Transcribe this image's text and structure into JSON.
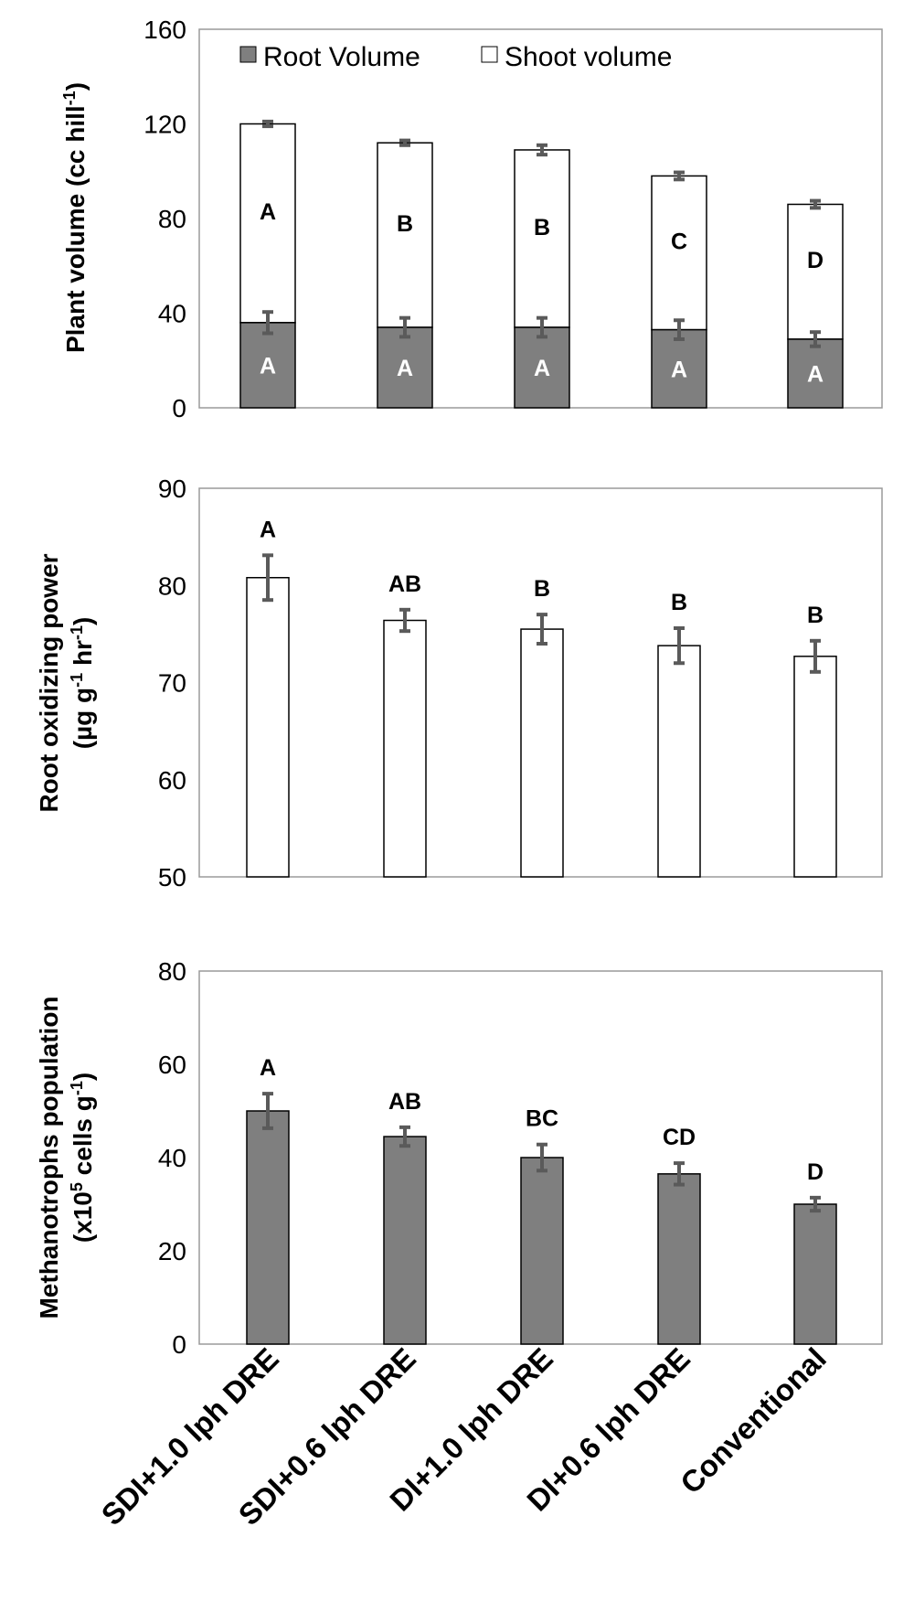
{
  "chart_data": [
    {
      "type": "bar",
      "stacked": true,
      "ylabel": "Plant volume (cc hill",
      "ylabel_sup": "-1",
      "ylabel_end": ")",
      "ylim": [
        0,
        160
      ],
      "yticks": [
        "0",
        "40",
        "80",
        "120",
        "160"
      ],
      "legend": {
        "placement": "top-left",
        "entries": [
          "Root Volume",
          "Shoot volume"
        ]
      },
      "categories": [
        "SDI+1.0 lph DRE",
        "SDI+0.6 lph DRE",
        "DI+1.0 lph DRE",
        "DI+0.6 lph DRE",
        "Conventional"
      ],
      "series": [
        {
          "name": "Root Volume",
          "color": "#7f7f7f",
          "values": [
            36,
            34,
            34,
            33,
            29
          ],
          "errors": [
            4.5,
            4,
            4,
            4,
            3
          ],
          "letters": [
            "A",
            "A",
            "A",
            "A",
            "A"
          ]
        },
        {
          "name": "Shoot volume",
          "color": "#ffffff",
          "values": [
            84,
            78,
            75,
            65,
            57
          ],
          "errors": [
            1,
            1,
            2,
            1.5,
            1.5
          ],
          "letters": [
            "A",
            "B",
            "B",
            "C",
            "D"
          ]
        }
      ]
    },
    {
      "type": "bar",
      "ylabel_line1": "Root oxidizing power",
      "ylabel_line2_pre": "(µg g",
      "ylabel_sup1": "-1",
      "ylabel_mid": " hr",
      "ylabel_sup2": "-1",
      "ylabel_end": ")",
      "ylim": [
        50,
        90
      ],
      "yticks": [
        "50",
        "60",
        "70",
        "80",
        "90"
      ],
      "color": "#ffffff",
      "categories": [
        "SDI+1.0 lph DRE",
        "SDI+0.6 lph DRE",
        "DI+1.0 lph DRE",
        "DI+0.6 lph DRE",
        "Conventional"
      ],
      "values": [
        80.8,
        76.4,
        75.5,
        73.8,
        72.7
      ],
      "errors": [
        2.3,
        1.1,
        1.5,
        1.8,
        1.6
      ],
      "letters": [
        "A",
        "AB",
        "B",
        "B",
        "B"
      ]
    },
    {
      "type": "bar",
      "ylabel_line1": "Methanotrophs population",
      "ylabel_line2_pre": "(x10",
      "ylabel_sup1": "5",
      "ylabel_mid": " cells g",
      "ylabel_sup2": "-1",
      "ylabel_end": ")",
      "ylim": [
        0,
        80
      ],
      "yticks": [
        "0",
        "20",
        "40",
        "60",
        "80"
      ],
      "color": "#7f7f7f",
      "categories": [
        "SDI+1.0 lph DRE",
        "SDI+0.6 lph DRE",
        "DI+1.0 lph DRE",
        "DI+0.6 lph DRE",
        "Conventional"
      ],
      "values": [
        50,
        44.5,
        40,
        36.5,
        30
      ],
      "errors": [
        3.7,
        2,
        2.8,
        2.3,
        1.4
      ],
      "letters": [
        "A",
        "AB",
        "BC",
        "CD",
        "D"
      ]
    }
  ]
}
